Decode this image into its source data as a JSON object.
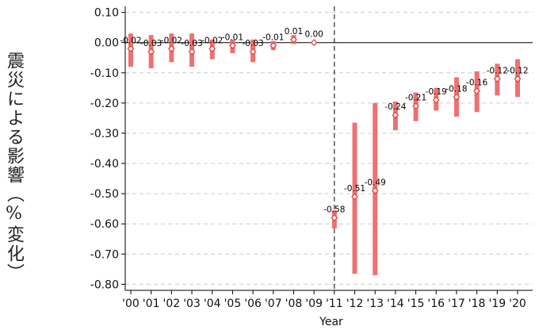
{
  "chart_data": {
    "type": "scatter",
    "title": "",
    "xlabel": "Year",
    "ylabel": "震災による影響（%変化）",
    "ylim": [
      -0.82,
      0.12
    ],
    "yticks": [
      0.1,
      0.0,
      -0.1,
      -0.2,
      -0.3,
      -0.4,
      -0.5,
      -0.6,
      -0.7,
      -0.8
    ],
    "ytick_labels": [
      "0.10",
      "0.00",
      "-0.10",
      "-0.20",
      "-0.30",
      "-0.40",
      "-0.50",
      "-0.60",
      "-0.70",
      "-0.80"
    ],
    "grid": true,
    "reference_line_x": "'11",
    "categories": [
      "'00",
      "'01",
      "'02",
      "'03",
      "'04",
      "'05",
      "'06",
      "'07",
      "'08",
      "'09",
      "'11",
      "'12",
      "'13",
      "'14",
      "'15",
      "'16",
      "'17",
      "'18",
      "'19",
      "'20"
    ],
    "estimates": [
      -0.02,
      -0.03,
      -0.02,
      -0.03,
      -0.02,
      -0.01,
      -0.03,
      -0.01,
      0.01,
      0.0,
      -0.58,
      -0.51,
      -0.49,
      -0.24,
      -0.21,
      -0.19,
      -0.18,
      -0.16,
      -0.12,
      -0.12
    ],
    "labels": [
      "-0.02",
      "-0.03",
      "-0.02",
      "-0.03",
      "-0.02",
      "-0.01",
      "-0.03",
      "-0.01",
      "0.01",
      "0.00",
      "-0.58",
      "-0.51",
      "-0.49",
      "-0.24",
      "-0.21",
      "-0.19",
      "-0.18",
      "-0.16",
      "-0.12",
      "-0.12"
    ],
    "ci_low": [
      -0.08,
      -0.085,
      -0.065,
      -0.08,
      -0.055,
      -0.035,
      -0.065,
      -0.025,
      -0.005,
      0.0,
      -0.615,
      -0.765,
      -0.77,
      -0.29,
      -0.26,
      -0.225,
      -0.245,
      -0.23,
      -0.175,
      -0.18
    ],
    "ci_high": [
      0.03,
      0.025,
      0.03,
      0.03,
      0.01,
      0.01,
      0.01,
      0.005,
      0.025,
      0.0,
      -0.555,
      -0.265,
      -0.2,
      -0.195,
      -0.165,
      -0.15,
      -0.115,
      -0.095,
      -0.07,
      -0.055
    ],
    "colors": {
      "ci_bar": "#f07070",
      "marker_edge": "#e0403a",
      "axis": "#000000",
      "grid": "#cccccc"
    }
  }
}
